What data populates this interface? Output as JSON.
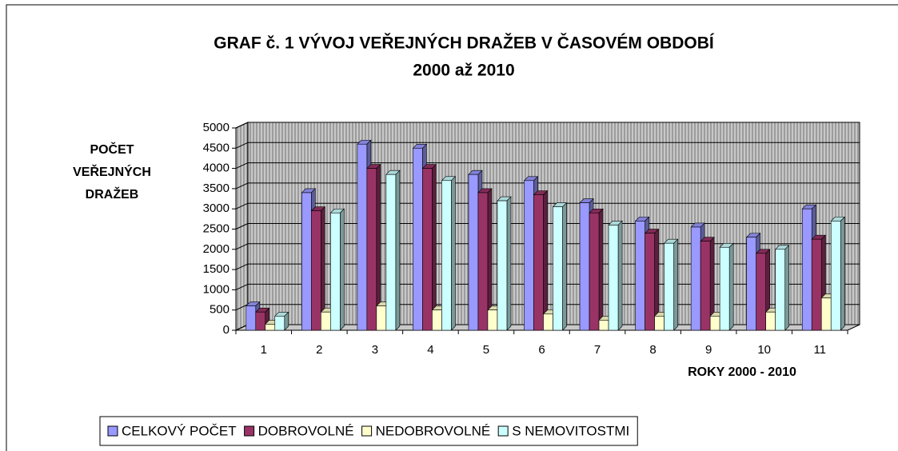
{
  "chart_data": {
    "type": "bar",
    "title": [
      "GRAF č. 1   VÝVOJ VEŘEJNÝCH DRAŽEB V ČASOVÉM OBDOBÍ",
      "2000 až 2010"
    ],
    "ylabel": [
      "POČET",
      "VEŘEJNÝCH",
      "DRAŽEB"
    ],
    "xlabel": "ROKY 2000 - 2010",
    "categories": [
      "1",
      "2",
      "3",
      "4",
      "5",
      "6",
      "7",
      "8",
      "9",
      "10",
      "11"
    ],
    "series": [
      {
        "name": "CELKOVÝ POČET",
        "color": "#9999ff",
        "values": [
          600,
          3400,
          4600,
          4500,
          3850,
          3700,
          3150,
          2700,
          2550,
          2300,
          3000
        ]
      },
      {
        "name": "DOBROVOLNÉ",
        "color": "#993366",
        "values": [
          450,
          2950,
          4000,
          4000,
          3400,
          3350,
          2900,
          2400,
          2200,
          1900,
          2250
        ]
      },
      {
        "name": "NEDOBROVOLNÉ",
        "color": "#ffffcc",
        "values": [
          150,
          450,
          600,
          500,
          500,
          400,
          250,
          350,
          350,
          450,
          800
        ]
      },
      {
        "name": "S NEMOVITOSTMI",
        "color": "#ccffff",
        "values": [
          350,
          2900,
          3850,
          3700,
          3200,
          3050,
          2600,
          2150,
          2050,
          2000,
          2700
        ]
      }
    ],
    "ylim": [
      0,
      5000
    ],
    "yticks": [
      0,
      500,
      1000,
      1500,
      2000,
      2500,
      3000,
      3500,
      4000,
      4500,
      5000
    ],
    "grid": true,
    "legend": "bottom"
  }
}
